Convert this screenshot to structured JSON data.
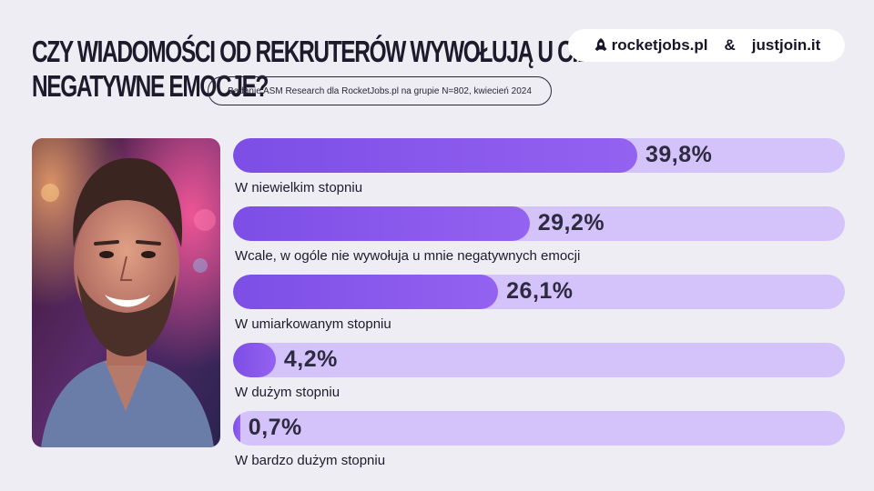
{
  "header": {
    "title_line1": "Czy wiadomości od rekruterów wywołują u ciebie",
    "title_line2": "negatywne emocje?",
    "source": "Badanie ASM Research dla RocketJobs.pl na grupie N=802, kwiecień 2024"
  },
  "brands": {
    "rocketjobs": "rocketjobs.pl",
    "ampersand": "&",
    "justjoin": "justjoin.it"
  },
  "colors": {
    "bar_fill": "#8655ea",
    "bar_track": "#d4c3fb",
    "background": "#eeedf3"
  },
  "chart_data": {
    "type": "bar",
    "orientation": "horizontal",
    "unit": "%",
    "xlim": [
      0,
      100
    ],
    "categories": [
      "W niewielkim stopniu",
      "Wcale, w ogóle nie wywołuja u mnie negatywnych emocji",
      "W umiarkowanym stopniu",
      "W dużym stopniu",
      "W bardzo dużym stopniu"
    ],
    "values": [
      39.8,
      29.2,
      26.1,
      4.2,
      0.7
    ],
    "value_labels": [
      "39,8%",
      "29,2%",
      "26,1%",
      "4,2%",
      "0,7%"
    ]
  }
}
